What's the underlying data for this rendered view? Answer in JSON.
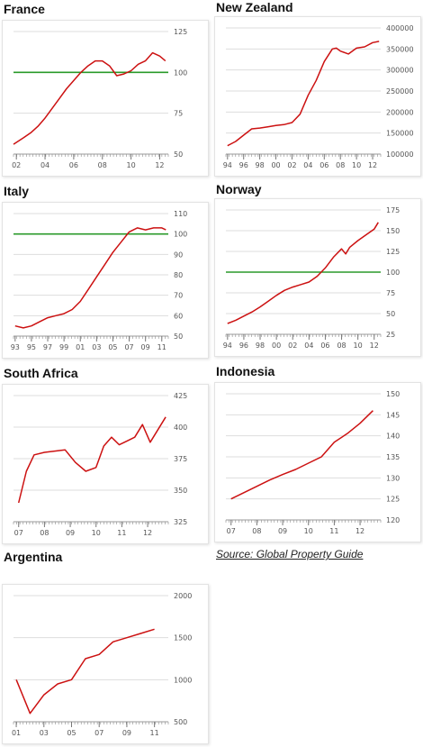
{
  "source_note": "Source: Global Property Guide",
  "colors": {
    "line": "#cc1111",
    "reference": "#2a9a2a",
    "grid": "#dddddd",
    "axis": "#999999"
  },
  "chart_data": [
    {
      "type": "line",
      "title": "France",
      "x_tick_labels": [
        "02",
        "04",
        "06",
        "08",
        "10",
        "12"
      ],
      "x_ticks": [
        2002,
        2004,
        2006,
        2008,
        2010,
        2012
      ],
      "xlim": [
        2001.8,
        2012.6
      ],
      "y_tick_labels": [
        "125",
        "100",
        "75",
        "50"
      ],
      "y_ticks": [
        125,
        100,
        75,
        50
      ],
      "ylim": [
        50,
        125
      ],
      "reference_line": 100,
      "grid": true,
      "series": [
        {
          "x": [
            2001.8,
            2002.5,
            2003,
            2003.5,
            2004,
            2004.5,
            2005,
            2005.5,
            2006,
            2006.5,
            2007,
            2007.5,
            2008,
            2008.5,
            2009,
            2009.5,
            2010,
            2010.5,
            2011,
            2011.5,
            2012,
            2012.4
          ],
          "values": [
            56,
            60,
            63,
            67,
            72,
            78,
            84,
            90,
            95,
            100,
            104,
            107,
            107,
            104,
            98,
            99,
            101,
            105,
            107,
            112,
            110,
            107
          ]
        }
      ]
    },
    {
      "type": "line",
      "title": "New Zealand",
      "x_tick_labels": [
        "94",
        "96",
        "98",
        "00",
        "02",
        "04",
        "06",
        "08",
        "10",
        "12"
      ],
      "x_ticks": [
        1994,
        1996,
        1998,
        2000,
        2002,
        2004,
        2006,
        2008,
        2010,
        2012
      ],
      "xlim": [
        1993.8,
        2013.0
      ],
      "y_tick_labels": [
        "400000",
        "350000",
        "300000",
        "250000",
        "200000",
        "150000",
        "100000"
      ],
      "y_ticks": [
        400000,
        350000,
        300000,
        250000,
        200000,
        150000,
        100000
      ],
      "ylim": [
        100000,
        400000
      ],
      "grid": true,
      "series": [
        {
          "x": [
            1994,
            1995,
            1996,
            1997,
            1998,
            1999,
            2000,
            2001,
            2002,
            2003,
            2004,
            2005,
            2006,
            2007,
            2007.5,
            2008,
            2009,
            2010,
            2011,
            2012,
            2012.8
          ],
          "values": [
            120000,
            130000,
            145000,
            160000,
            162000,
            165000,
            168000,
            170000,
            175000,
            195000,
            240000,
            275000,
            320000,
            350000,
            352000,
            345000,
            338000,
            352000,
            355000,
            365000,
            368000
          ]
        }
      ]
    },
    {
      "type": "line",
      "title": "Italy",
      "x_tick_labels": [
        "93",
        "95",
        "97",
        "99",
        "01",
        "03",
        "05",
        "07",
        "09",
        "11"
      ],
      "x_ticks": [
        1993,
        1995,
        1997,
        1999,
        2001,
        2003,
        2005,
        2007,
        2009,
        2011
      ],
      "xlim": [
        1992.8,
        2011.8
      ],
      "y_tick_labels": [
        "110",
        "100",
        "90",
        "80",
        "70",
        "60",
        "50"
      ],
      "y_ticks": [
        110,
        100,
        90,
        80,
        70,
        60,
        50
      ],
      "ylim": [
        50,
        110
      ],
      "reference_line": 100,
      "grid": true,
      "series": [
        {
          "x": [
            1993,
            1994,
            1995,
            1996,
            1997,
            1998,
            1999,
            2000,
            2001,
            2002,
            2003,
            2004,
            2005,
            2006,
            2007,
            2008,
            2009,
            2010,
            2011,
            2011.5
          ],
          "values": [
            55,
            54,
            55,
            57,
            59,
            60,
            61,
            63,
            67,
            73,
            79,
            85,
            91,
            96,
            101,
            103,
            102,
            103,
            103,
            102
          ]
        }
      ]
    },
    {
      "type": "line",
      "title": "Norway",
      "x_tick_labels": [
        "94",
        "96",
        "98",
        "00",
        "02",
        "04",
        "06",
        "08",
        "10",
        "12"
      ],
      "x_ticks": [
        1994,
        1996,
        1998,
        2000,
        2002,
        2004,
        2006,
        2008,
        2010,
        2012
      ],
      "xlim": [
        1993.8,
        2012.8
      ],
      "y_tick_labels": [
        "175",
        "150",
        "125",
        "100",
        "75",
        "50",
        "25"
      ],
      "y_ticks": [
        175,
        150,
        125,
        100,
        75,
        50,
        25
      ],
      "ylim": [
        25,
        175
      ],
      "reference_line": 100,
      "grid": true,
      "series": [
        {
          "x": [
            1994,
            1995,
            1996,
            1997,
            1998,
            1999,
            2000,
            2001,
            2002,
            2003,
            2004,
            2005,
            2006,
            2007,
            2008,
            2008.5,
            2009,
            2010,
            2011,
            2012,
            2012.5
          ],
          "values": [
            38,
            42,
            47,
            52,
            58,
            65,
            72,
            78,
            82,
            85,
            88,
            95,
            105,
            118,
            128,
            122,
            130,
            138,
            145,
            152,
            160
          ]
        }
      ]
    },
    {
      "type": "line",
      "title": "South Africa",
      "x_tick_labels": [
        "07",
        "08",
        "09",
        "10",
        "11",
        "12"
      ],
      "x_ticks": [
        2007,
        2008,
        2009,
        2010,
        2011,
        2012
      ],
      "xlim": [
        2006.8,
        2012.8
      ],
      "y_tick_labels": [
        "425",
        "400",
        "375",
        "350",
        "325"
      ],
      "y_ticks": [
        425,
        400,
        375,
        350,
        325
      ],
      "ylim": [
        325,
        425
      ],
      "grid": true,
      "series": [
        {
          "x": [
            2007,
            2007.3,
            2007.6,
            2008,
            2008.4,
            2008.8,
            2009.2,
            2009.6,
            2010,
            2010.3,
            2010.6,
            2010.9,
            2011.2,
            2011.5,
            2011.8,
            2012.1,
            2012.4,
            2012.7
          ],
          "values": [
            340,
            365,
            378,
            380,
            381,
            382,
            372,
            365,
            368,
            385,
            392,
            386,
            389,
            392,
            402,
            388,
            398,
            408
          ]
        }
      ]
    },
    {
      "type": "line",
      "title": "Indonesia",
      "x_tick_labels": [
        "07",
        "08",
        "09",
        "10",
        "11",
        "12"
      ],
      "x_ticks": [
        2007,
        2008,
        2009,
        2010,
        2011,
        2012
      ],
      "xlim": [
        2006.8,
        2012.8
      ],
      "y_tick_labels": [
        "150",
        "145",
        "140",
        "135",
        "130",
        "125",
        "120"
      ],
      "y_ticks": [
        150,
        145,
        140,
        135,
        130,
        125,
        120
      ],
      "ylim": [
        120,
        150
      ],
      "grid": true,
      "series": [
        {
          "x": [
            2007,
            2007.5,
            2008,
            2008.5,
            2009,
            2009.5,
            2010,
            2010.5,
            2011,
            2011.5,
            2012,
            2012.5
          ],
          "values": [
            125,
            126.5,
            128,
            129.5,
            130.8,
            132,
            133.5,
            135,
            138.5,
            140.5,
            143,
            146
          ]
        }
      ]
    },
    {
      "type": "line",
      "title": "Argentina",
      "x_tick_labels": [
        "01",
        "03",
        "05",
        "07",
        "09",
        "11"
      ],
      "x_ticks": [
        2001,
        2003,
        2005,
        2007,
        2009,
        2011
      ],
      "xlim": [
        2000.8,
        2012.0
      ],
      "y_tick_labels": [
        "2000",
        "1500",
        "1000",
        "500"
      ],
      "y_ticks": [
        2000,
        1500,
        1000,
        500
      ],
      "ylim": [
        500,
        2000
      ],
      "grid": true,
      "series": [
        {
          "x": [
            2001,
            2002,
            2003,
            2004,
            2005,
            2006,
            2007,
            2008,
            2009,
            2010,
            2011
          ],
          "values": [
            1000,
            600,
            820,
            950,
            1000,
            1250,
            1300,
            1450,
            1500,
            1550,
            1600
          ]
        }
      ]
    }
  ]
}
